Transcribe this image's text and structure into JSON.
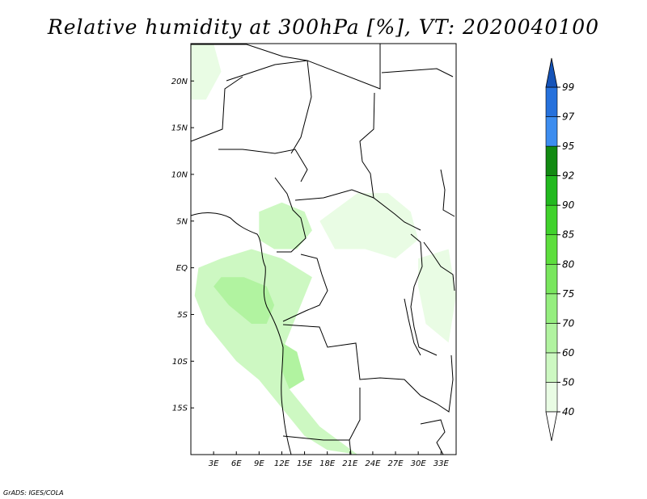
{
  "title": "Relative humidity at 300hPa [%], VT: 2020040100",
  "credit": "GrADS: IGES/COLA",
  "map": {
    "lat_range": [
      -20,
      24
    ],
    "lon_range": [
      0,
      35
    ],
    "lat_ticks": [
      {
        "lat": 20,
        "label": "20N"
      },
      {
        "lat": 15,
        "label": "15N"
      },
      {
        "lat": 10,
        "label": "10N"
      },
      {
        "lat": 5,
        "label": "5N"
      },
      {
        "lat": 0,
        "label": "EQ"
      },
      {
        "lat": -5,
        "label": "5S"
      },
      {
        "lat": -10,
        "label": "10S"
      },
      {
        "lat": -15,
        "label": "15S"
      }
    ],
    "lon_ticks": [
      {
        "lon": 3,
        "label": "3E"
      },
      {
        "lon": 6,
        "label": "6E"
      },
      {
        "lon": 9,
        "label": "9E"
      },
      {
        "lon": 12,
        "label": "12E"
      },
      {
        "lon": 15,
        "label": "15E"
      },
      {
        "lon": 18,
        "label": "18E"
      },
      {
        "lon": 21,
        "label": "21E"
      },
      {
        "lon": 24,
        "label": "24E"
      },
      {
        "lon": 27,
        "label": "27E"
      },
      {
        "lon": 30,
        "label": "30E"
      },
      {
        "lon": 33,
        "label": "33E"
      }
    ]
  },
  "colorbar": {
    "levels": [
      "40",
      "50",
      "60",
      "70",
      "75",
      "80",
      "85",
      "90",
      "92",
      "95",
      "97",
      "99"
    ],
    "colors": [
      "#e9fce4",
      "#cdf8c2",
      "#b1f3a0",
      "#95ee7f",
      "#79e65e",
      "#5dde3d",
      "#40d22c",
      "#22b91f",
      "#128a12",
      "#3d8def",
      "#2671dc",
      "#1553b8"
    ],
    "under_color": "#ffffff",
    "over_color": "#1553b8"
  },
  "humidity_regions": [
    {
      "name": "central-africa-west-band",
      "level": "50-60",
      "color": "#cdf8c2",
      "points": [
        [
          0.5,
          -3
        ],
        [
          2,
          -6
        ],
        [
          4,
          -8
        ],
        [
          6,
          -10
        ],
        [
          9,
          -12
        ],
        [
          11,
          -14
        ],
        [
          13,
          -16
        ],
        [
          15,
          -18
        ],
        [
          18,
          -19.5
        ],
        [
          22,
          -20
        ],
        [
          17,
          -17
        ],
        [
          13,
          -13
        ],
        [
          12,
          -9
        ],
        [
          14,
          -5
        ],
        [
          16,
          -1
        ],
        [
          12,
          1
        ],
        [
          8,
          2
        ],
        [
          4,
          1
        ],
        [
          1,
          0
        ]
      ]
    },
    {
      "name": "gulf-of-guinea-core",
      "level": "60-70",
      "color": "#b1f3a0",
      "points": [
        [
          3,
          -2
        ],
        [
          5,
          -4
        ],
        [
          8,
          -6
        ],
        [
          10,
          -6
        ],
        [
          11,
          -4
        ],
        [
          10,
          -2
        ],
        [
          7,
          -1
        ],
        [
          4,
          -1
        ]
      ]
    },
    {
      "name": "cameroon-highlands",
      "level": "50-60",
      "color": "#cdf8c2",
      "points": [
        [
          9,
          6
        ],
        [
          12,
          7
        ],
        [
          15,
          6
        ],
        [
          16,
          4
        ],
        [
          14,
          2
        ],
        [
          11,
          2
        ],
        [
          9,
          3
        ]
      ]
    },
    {
      "name": "congo-basin-north",
      "level": "40-50",
      "color": "#e9fce4",
      "points": [
        [
          17,
          5
        ],
        [
          22,
          8
        ],
        [
          26,
          8
        ],
        [
          29,
          6
        ],
        [
          30,
          3
        ],
        [
          27,
          1
        ],
        [
          23,
          2
        ],
        [
          19,
          2
        ]
      ]
    },
    {
      "name": "angola-plateau",
      "level": "60-70",
      "color": "#b1f3a0",
      "points": [
        [
          12,
          -8
        ],
        [
          14,
          -9
        ],
        [
          15,
          -12
        ],
        [
          13,
          -13
        ],
        [
          12,
          -11
        ]
      ]
    },
    {
      "name": "east-africa-lakes",
      "level": "40-50",
      "color": "#e9fce4",
      "points": [
        [
          30,
          1
        ],
        [
          34,
          2
        ],
        [
          35,
          -3
        ],
        [
          34,
          -8
        ],
        [
          31,
          -6
        ],
        [
          30,
          -2
        ]
      ]
    },
    {
      "name": "sahel-west",
      "level": "40-50",
      "color": "#e9fce4",
      "points": [
        [
          0,
          24
        ],
        [
          3,
          24
        ],
        [
          4,
          21
        ],
        [
          2,
          18
        ],
        [
          0,
          18
        ]
      ]
    }
  ]
}
